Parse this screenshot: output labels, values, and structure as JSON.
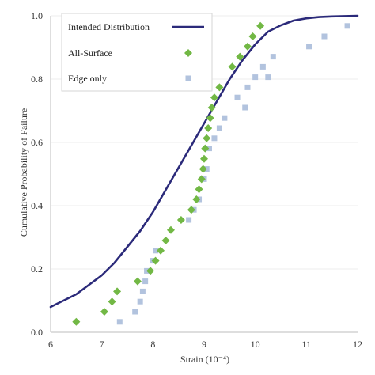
{
  "chart_data": {
    "type": "scatter",
    "title": "",
    "xlabel": "Strain (10⁻⁴)",
    "ylabel": "Cumulative Probability of Failure",
    "xlim": [
      6,
      12
    ],
    "ylim": [
      0,
      1.0
    ],
    "x_ticks": [
      "6",
      "7",
      "8",
      "9",
      "10",
      "11",
      "12"
    ],
    "y_ticks": [
      "0.0",
      "0.2",
      "0.4",
      "0.6",
      "0.8",
      "1.0"
    ],
    "legend_position": "top-left",
    "series": [
      {
        "name": "Intended Distribution",
        "kind": "line",
        "color": "#2b2a7a",
        "x": [
          6.0,
          6.25,
          6.5,
          6.75,
          7.0,
          7.25,
          7.5,
          7.75,
          8.0,
          8.25,
          8.5,
          8.75,
          9.0,
          9.25,
          9.5,
          9.75,
          10.0,
          10.25,
          10.5,
          10.75,
          11.0,
          11.25,
          11.5,
          11.75,
          12.0
        ],
        "y": [
          0.08,
          0.1,
          0.12,
          0.15,
          0.18,
          0.22,
          0.27,
          0.32,
          0.38,
          0.45,
          0.52,
          0.59,
          0.66,
          0.73,
          0.8,
          0.86,
          0.91,
          0.95,
          0.97,
          0.985,
          0.992,
          0.996,
          0.998,
          0.999,
          1.0
        ]
      },
      {
        "name": "All-Surface",
        "kind": "diamond",
        "color": "#72b845",
        "x": [
          6.5,
          7.05,
          7.2,
          7.3,
          7.7,
          7.95,
          8.05,
          8.15,
          8.25,
          8.35,
          8.55,
          8.75,
          8.85,
          8.9,
          8.95,
          8.98,
          9.0,
          9.02,
          9.05,
          9.08,
          9.12,
          9.15,
          9.2,
          9.3,
          9.55,
          9.7,
          9.85,
          9.95,
          10.1
        ],
        "y": [
          0.033,
          0.065,
          0.097,
          0.129,
          0.161,
          0.194,
          0.226,
          0.258,
          0.29,
          0.323,
          0.355,
          0.387,
          0.42,
          0.452,
          0.484,
          0.516,
          0.548,
          0.581,
          0.613,
          0.645,
          0.677,
          0.71,
          0.742,
          0.774,
          0.839,
          0.871,
          0.903,
          0.935,
          0.968
        ]
      },
      {
        "name": "Edge only",
        "kind": "square",
        "color": "#b2c3de",
        "x": [
          7.35,
          7.65,
          7.75,
          7.8,
          7.85,
          7.88,
          8.0,
          8.05,
          8.7,
          8.8,
          8.9,
          9.0,
          9.05,
          9.1,
          9.2,
          9.3,
          9.4,
          9.65,
          9.8,
          9.85,
          10.0,
          10.15,
          10.25,
          10.35,
          11.05,
          11.35,
          11.8
        ],
        "y": [
          0.033,
          0.065,
          0.097,
          0.129,
          0.161,
          0.194,
          0.226,
          0.258,
          0.355,
          0.387,
          0.42,
          0.484,
          0.516,
          0.581,
          0.613,
          0.645,
          0.677,
          0.742,
          0.71,
          0.774,
          0.806,
          0.839,
          0.806,
          0.871,
          0.903,
          0.935,
          0.968
        ]
      }
    ]
  }
}
